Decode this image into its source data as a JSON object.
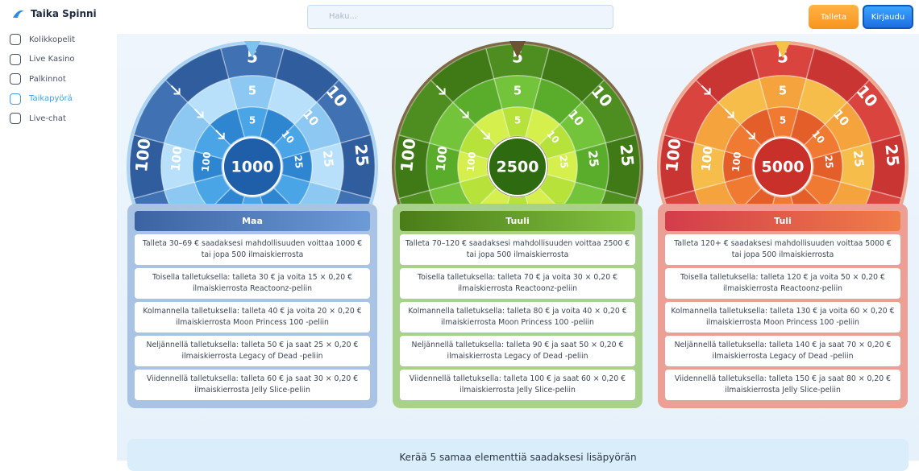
{
  "sidebar": {
    "brand": "Taika Spinni",
    "nav": [
      "Kolikkopelit",
      "Live Kasino",
      "Palkinnot",
      "Taikapyörä",
      "Live-chat"
    ],
    "active": 3
  },
  "header": {
    "search_placeholder": "Haku...",
    "buttons": [
      "Talleta",
      "Kirjaudu"
    ]
  },
  "wheels": [
    {
      "center": "1000",
      "outer": [
        "5",
        "10",
        "25",
        "100"
      ],
      "middle": [
        "5",
        "10",
        "25",
        "100"
      ],
      "inner": [
        "5",
        "10",
        "25",
        "100"
      ],
      "card": {
        "title": "Maa",
        "rows": [
          "Talleta 30–69 € saadaksesi mahdollisuuden voittaa 1000 € tai jopa 500 ilmaiskierrosta",
          "Toisella talletuksella: talleta 30 € ja voita 15 × 0,20 € ilmaiskierrosta Reactoonz-peliin",
          "Kolmannella talletuksella: talleta 40 € ja voita 20 × 0,20 € ilmaiskierrosta Moon Princess 100 -peliin",
          "Neljännellä talletuksella: talleta 50 € ja saat 25 × 0,20 € ilmaiskierrosta Legacy of Dead -peliin",
          "Viidennellä talletuksella: talleta 60 € ja saat 30 × 0,20 € ilmaiskierrosta Jelly Slice-peliin"
        ]
      }
    },
    {
      "center": "2500",
      "outer": [
        "5",
        "10",
        "25",
        "100"
      ],
      "middle": [
        "5",
        "10",
        "25",
        "100"
      ],
      "inner": [
        "5",
        "10",
        "25",
        "100"
      ],
      "card": {
        "title": "Tuuli",
        "rows": [
          "Talleta 70–120 € saadaksesi mahdollisuuden voittaa 2500 € tai jopa 500 ilmaiskierrosta",
          "Toisella talletuksella: talleta 70 € ja voita 30 × 0,20 € ilmaiskierrosta Reactoonz-peliin",
          "Kolmannella talletuksella: talleta 80 € ja voita 40 × 0,20 € ilmaiskierrosta Moon Princess 100 -peliin",
          "Neljännellä talletuksella: talleta 90 € ja saat 50 × 0,20 € ilmaiskierrosta Legacy of Dead -peliin",
          "Viidennellä talletuksella: talleta 100 € ja saat 60 × 0,20 € ilmaiskierrosta Jelly Slice-peliin"
        ]
      }
    },
    {
      "center": "5000",
      "outer": [
        "5",
        "10",
        "25",
        "100"
      ],
      "middle": [
        "5",
        "10",
        "25",
        "100"
      ],
      "inner": [
        "5",
        "10",
        "25",
        "100"
      ],
      "card": {
        "title": "Tuli",
        "rows": [
          "Talleta 120+ € saadaksesi mahdollisuuden voittaa 5000 € tai jopa 500 ilmaiskierrosta",
          "Toisella talletuksella: talleta 120 € ja voita 50 × 0,20 € ilmaiskierrosta Reactoonz-peliin",
          "Kolmannella talletuksella: talleta 130 € ja voita 60 × 0,20 € ilmaiskierrosta Moon Princess 100 -peliin",
          "Neljännellä talletuksella: talleta 140 € ja saat 70 × 0,20 € ilmaiskierrosta Legacy of Dead -peliin",
          "Viidennellä talletuksella: talleta 150 € ja saat 80 × 0,20 € ilmaiskierrosta Jelly Slice-peliin"
        ]
      }
    }
  ],
  "banner": "Kerää 5 samaa elementtiä saadaksesi lisäpyörän"
}
